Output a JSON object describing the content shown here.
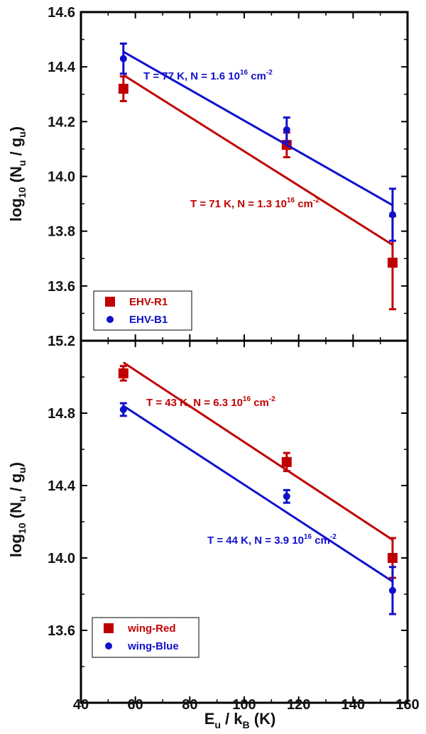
{
  "chart_data": [
    {
      "type": "scatter",
      "ylabel": "log10 (Nu / gu)",
      "ylim": [
        13.4,
        14.6
      ],
      "yticks": [
        "13.6",
        "13.8",
        "14.0",
        "14.2",
        "14.4",
        "14.6"
      ],
      "xlim": [
        40,
        160
      ],
      "series": [
        {
          "name": "EHV-R1",
          "color": "#c00000",
          "marker": "square",
          "x": [
            55.6,
            115.6,
            154.5
          ],
          "y": [
            14.32,
            14.115,
            13.685
          ],
          "yerr": [
            0.045,
            0.045,
            0.17
          ],
          "fit": {
            "x": [
              55.6,
              154.5
            ],
            "y": [
              14.37,
              13.75
            ],
            "label": "T = 71 K, N = 1.3 10",
            "exp": "16",
            "unit": " cm",
            "uexp": "-2"
          }
        },
        {
          "name": "EHV-B1",
          "color": "#1010cc",
          "marker": "circle",
          "x": [
            55.6,
            115.6,
            154.5
          ],
          "y": [
            14.43,
            14.17,
            13.86
          ],
          "yerr": [
            0.055,
            0.045,
            0.095
          ],
          "fit": {
            "x": [
              55.6,
              154.5
            ],
            "y": [
              14.455,
              13.895
            ],
            "label": "T = 77 K, N = 1.6 10",
            "exp": "16",
            "unit": " cm",
            "uexp": "-2"
          }
        }
      ]
    },
    {
      "type": "scatter",
      "ylabel": "log10 (Nu / gu)",
      "ylim": [
        13.2,
        15.2
      ],
      "yticks": [
        "13.6",
        "14.0",
        "14.4",
        "14.8",
        "15.2"
      ],
      "xlabel": "Eu / kB (K)",
      "xlim": [
        40,
        160
      ],
      "xticks": [
        "40",
        "60",
        "80",
        "100",
        "120",
        "140",
        "160"
      ],
      "series": [
        {
          "name": "wing-Red",
          "color": "#c00000",
          "marker": "square",
          "x": [
            55.6,
            115.6,
            154.5
          ],
          "y": [
            15.02,
            14.53,
            14.0
          ],
          "yerr": [
            0.04,
            0.05,
            0.11
          ],
          "fit": {
            "x": [
              55.6,
              154.5
            ],
            "y": [
              15.08,
              14.1
            ],
            "label": "T = 43 K, N = 6.3 10",
            "exp": "16",
            "unit": " cm",
            "uexp": "-2"
          }
        },
        {
          "name": "wing-Blue",
          "color": "#1010cc",
          "marker": "circle",
          "x": [
            55.6,
            115.6,
            154.5
          ],
          "y": [
            14.82,
            14.34,
            13.82
          ],
          "yerr": [
            0.035,
            0.035,
            0.13
          ],
          "fit": {
            "x": [
              55.6,
              154.5
            ],
            "y": [
              14.84,
              13.87
            ],
            "label": "T = 44 K, N = 3.9 10",
            "exp": "16",
            "unit": " cm",
            "uexp": "-2"
          }
        }
      ]
    }
  ],
  "labels": {
    "ylabel_main": "log",
    "ylabel_sub10": "10",
    "ylabel_paren": " (N",
    "ylabel_subu1": "u",
    "ylabel_slash": " / g",
    "ylabel_subu2": "u",
    "ylabel_close": ")",
    "xlabel_E": "E",
    "xlabel_u": "u",
    "xlabel_slash": " / k",
    "xlabel_B": "B",
    "xlabel_unit": " (K)"
  }
}
